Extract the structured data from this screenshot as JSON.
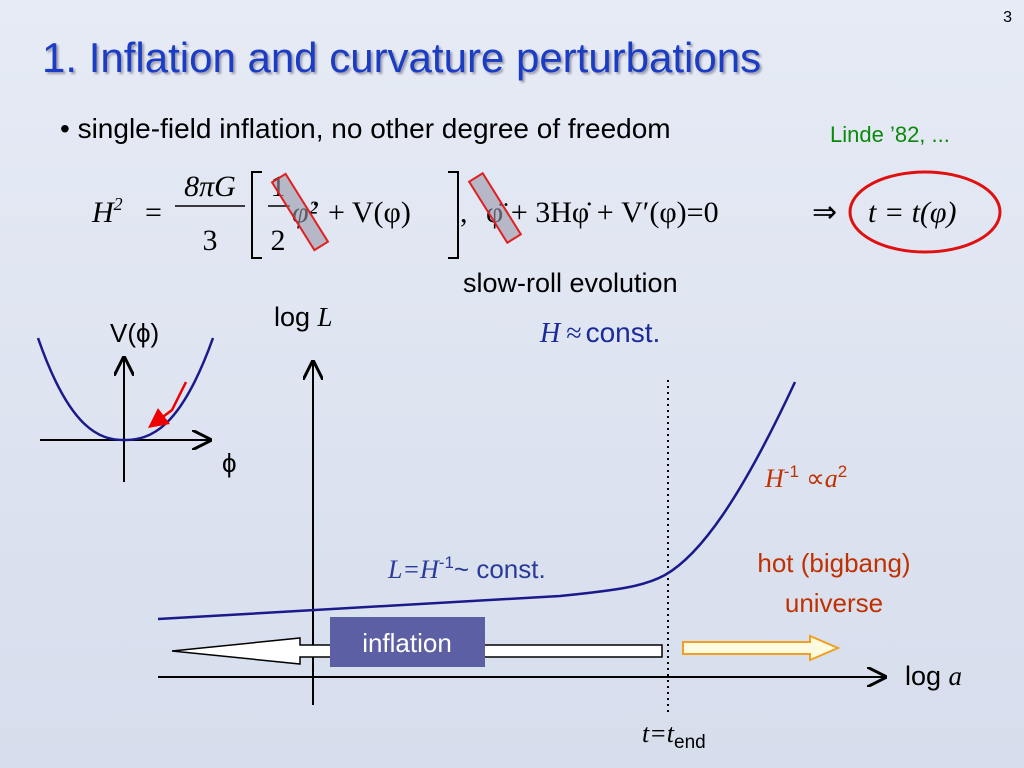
{
  "slide_number": "3",
  "title": "1. Inflation and curvature perturbations",
  "bullet": "• single-field inflation, no other degree of freedom",
  "reference": "Linde ’82, ...",
  "equation": {
    "lhs": "H",
    "lhs_power": "2",
    "equals": "=",
    "frac_num": "8πG",
    "frac_den": "3",
    "half_num": "1",
    "half_den": "2",
    "kinetic": "φ̇²",
    "potential": "+ V(φ)",
    "comma": ",",
    "eom": "φ̈ + 3Hφ̇ + V′(φ)=0",
    "implies": "⇒",
    "result": "t = t(φ)"
  },
  "slow_roll": "slow-roll evolution",
  "hubble": {
    "symbol": "H",
    "approx": "≈",
    "rest": "const."
  },
  "y_axis_label": {
    "prefix": "log ",
    "symbol": "L"
  },
  "x_axis_label": {
    "prefix": "log ",
    "symbol": "a"
  },
  "potential_plot": {
    "label": "V(ϕ)",
    "x_label": "ϕ"
  },
  "late_scaling": {
    "base": "H",
    "power": "-1",
    "prop": " ∝",
    "var": "a",
    "var_power": "2"
  },
  "inflation_scaling": {
    "lhs": "L=H",
    "power": "-1",
    "rest": "~ const."
  },
  "hot_universe": [
    "hot (bigbang)",
    "universe"
  ],
  "inflation_label": "inflation",
  "end_time": {
    "lhs": "t=t",
    "sub": "end"
  }
}
